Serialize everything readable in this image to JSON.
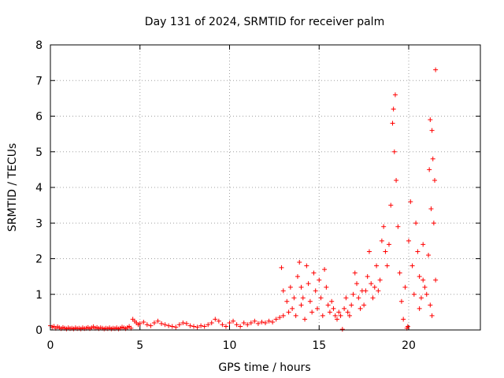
{
  "chart_data": {
    "type": "scatter",
    "title": "Day 131 of 2024, SRMTID for receiver palm",
    "xlabel": "GPS time / hours",
    "ylabel": "SRMTID / TECUs",
    "xlim": [
      0,
      24
    ],
    "ylim": [
      0,
      8
    ],
    "xticks": [
      0,
      5,
      10,
      15,
      20
    ],
    "yticks": [
      0,
      1,
      2,
      3,
      4,
      5,
      6,
      7,
      8
    ],
    "grid": true,
    "marker": "+",
    "color": "#ff0000",
    "series": [
      {
        "name": "SRMTID",
        "points": [
          [
            0.0,
            0.12
          ],
          [
            0.1,
            0.08
          ],
          [
            0.2,
            0.1
          ],
          [
            0.3,
            0.05
          ],
          [
            0.4,
            0.09
          ],
          [
            0.5,
            0.06
          ],
          [
            0.6,
            0.04
          ],
          [
            0.7,
            0.07
          ],
          [
            0.8,
            0.05
          ],
          [
            0.9,
            0.03
          ],
          [
            1.0,
            0.06
          ],
          [
            1.1,
            0.04
          ],
          [
            1.2,
            0.05
          ],
          [
            1.3,
            0.03
          ],
          [
            1.4,
            0.06
          ],
          [
            1.5,
            0.04
          ],
          [
            1.6,
            0.05
          ],
          [
            1.7,
            0.03
          ],
          [
            1.8,
            0.06
          ],
          [
            1.9,
            0.04
          ],
          [
            2.0,
            0.05
          ],
          [
            2.1,
            0.07
          ],
          [
            2.2,
            0.04
          ],
          [
            2.3,
            0.06
          ],
          [
            2.4,
            0.09
          ],
          [
            2.5,
            0.05
          ],
          [
            2.6,
            0.07
          ],
          [
            2.7,
            0.04
          ],
          [
            2.8,
            0.06
          ],
          [
            2.9,
            0.05
          ],
          [
            3.0,
            0.03
          ],
          [
            3.1,
            0.05
          ],
          [
            3.2,
            0.04
          ],
          [
            3.3,
            0.06
          ],
          [
            3.4,
            0.03
          ],
          [
            3.5,
            0.05
          ],
          [
            3.6,
            0.04
          ],
          [
            3.7,
            0.06
          ],
          [
            3.8,
            0.03
          ],
          [
            3.9,
            0.05
          ],
          [
            4.0,
            0.08
          ],
          [
            4.1,
            0.06
          ],
          [
            4.2,
            0.04
          ],
          [
            4.3,
            0.07
          ],
          [
            4.4,
            0.1
          ],
          [
            4.5,
            0.05
          ],
          [
            4.6,
            0.3
          ],
          [
            4.7,
            0.25
          ],
          [
            4.8,
            0.2
          ],
          [
            4.9,
            0.15
          ],
          [
            5.0,
            0.18
          ],
          [
            5.2,
            0.22
          ],
          [
            5.4,
            0.15
          ],
          [
            5.6,
            0.12
          ],
          [
            5.8,
            0.2
          ],
          [
            6.0,
            0.25
          ],
          [
            6.2,
            0.18
          ],
          [
            6.4,
            0.15
          ],
          [
            6.6,
            0.12
          ],
          [
            6.8,
            0.1
          ],
          [
            7.0,
            0.08
          ],
          [
            7.2,
            0.15
          ],
          [
            7.4,
            0.2
          ],
          [
            7.6,
            0.18
          ],
          [
            7.8,
            0.12
          ],
          [
            8.0,
            0.1
          ],
          [
            8.2,
            0.08
          ],
          [
            8.4,
            0.12
          ],
          [
            8.6,
            0.1
          ],
          [
            8.8,
            0.15
          ],
          [
            9.0,
            0.2
          ],
          [
            9.2,
            0.3
          ],
          [
            9.4,
            0.25
          ],
          [
            9.6,
            0.15
          ],
          [
            9.8,
            0.1
          ],
          [
            10.0,
            0.2
          ],
          [
            10.2,
            0.25
          ],
          [
            10.4,
            0.15
          ],
          [
            10.6,
            0.1
          ],
          [
            10.8,
            0.2
          ],
          [
            11.0,
            0.15
          ],
          [
            11.2,
            0.2
          ],
          [
            11.4,
            0.25
          ],
          [
            11.6,
            0.18
          ],
          [
            11.8,
            0.22
          ],
          [
            12.0,
            0.2
          ],
          [
            12.2,
            0.25
          ],
          [
            12.4,
            0.22
          ],
          [
            12.6,
            0.3
          ],
          [
            12.8,
            0.35
          ],
          [
            12.9,
            1.75
          ],
          [
            13.0,
            1.1
          ],
          [
            13.0,
            0.4
          ],
          [
            13.2,
            0.8
          ],
          [
            13.3,
            0.5
          ],
          [
            13.4,
            1.2
          ],
          [
            13.5,
            0.6
          ],
          [
            13.6,
            0.9
          ],
          [
            13.7,
            0.4
          ],
          [
            13.8,
            1.5
          ],
          [
            13.9,
            1.9
          ],
          [
            14.0,
            1.2
          ],
          [
            14.0,
            0.7
          ],
          [
            14.1,
            0.9
          ],
          [
            14.2,
            0.3
          ],
          [
            14.3,
            1.8
          ],
          [
            14.4,
            1.3
          ],
          [
            14.5,
            0.8
          ],
          [
            14.6,
            0.5
          ],
          [
            14.7,
            1.6
          ],
          [
            14.8,
            1.1
          ],
          [
            14.9,
            0.6
          ],
          [
            15.0,
            1.4
          ],
          [
            15.1,
            0.9
          ],
          [
            15.2,
            0.4
          ],
          [
            15.3,
            1.7
          ],
          [
            15.4,
            1.2
          ],
          [
            15.5,
            0.7
          ],
          [
            15.6,
            0.5
          ],
          [
            15.7,
            0.8
          ],
          [
            15.8,
            0.6
          ],
          [
            15.9,
            0.4
          ],
          [
            16.0,
            0.3
          ],
          [
            16.1,
            0.5
          ],
          [
            16.2,
            0.4
          ],
          [
            16.3,
            0.02
          ],
          [
            16.4,
            0.6
          ],
          [
            16.5,
            0.9
          ],
          [
            16.6,
            0.5
          ],
          [
            16.7,
            0.4
          ],
          [
            16.8,
            0.7
          ],
          [
            16.9,
            1.0
          ],
          [
            17.0,
            1.6
          ],
          [
            17.1,
            1.3
          ],
          [
            17.2,
            0.9
          ],
          [
            17.3,
            0.6
          ],
          [
            17.4,
            1.1
          ],
          [
            17.5,
            0.7
          ],
          [
            17.6,
            1.1
          ],
          [
            17.7,
            1.5
          ],
          [
            17.8,
            2.2
          ],
          [
            17.9,
            1.3
          ],
          [
            18.0,
            0.9
          ],
          [
            18.1,
            1.2
          ],
          [
            18.2,
            1.8
          ],
          [
            18.3,
            1.1
          ],
          [
            18.4,
            1.4
          ],
          [
            18.5,
            2.5
          ],
          [
            18.6,
            2.9
          ],
          [
            18.7,
            2.2
          ],
          [
            18.8,
            1.8
          ],
          [
            18.9,
            2.4
          ],
          [
            19.0,
            3.5
          ],
          [
            19.1,
            5.8
          ],
          [
            19.15,
            6.2
          ],
          [
            19.2,
            5.0
          ],
          [
            19.25,
            6.6
          ],
          [
            19.3,
            4.2
          ],
          [
            19.4,
            2.9
          ],
          [
            19.5,
            1.6
          ],
          [
            19.6,
            0.8
          ],
          [
            19.7,
            0.3
          ],
          [
            19.8,
            1.2
          ],
          [
            19.9,
            0.05
          ],
          [
            19.95,
            0.1
          ],
          [
            20.0,
            2.5
          ],
          [
            20.1,
            3.6
          ],
          [
            20.2,
            1.8
          ],
          [
            20.3,
            1.0
          ],
          [
            20.4,
            3.0
          ],
          [
            20.5,
            2.2
          ],
          [
            20.6,
            1.5
          ],
          [
            20.7,
            0.9
          ],
          [
            20.8,
            1.4
          ],
          [
            20.9,
            1.2
          ],
          [
            21.0,
            1.0
          ],
          [
            21.1,
            2.1
          ],
          [
            21.15,
            4.5
          ],
          [
            21.2,
            5.9
          ],
          [
            21.25,
            3.4
          ],
          [
            21.3,
            5.6
          ],
          [
            21.35,
            4.8
          ],
          [
            21.4,
            3.0
          ],
          [
            21.45,
            4.2
          ],
          [
            21.5,
            7.3
          ],
          [
            21.5,
            1.4
          ],
          [
            21.3,
            0.4
          ],
          [
            21.2,
            0.7
          ],
          [
            20.8,
            2.4
          ],
          [
            20.6,
            0.6
          ]
        ]
      }
    ]
  }
}
